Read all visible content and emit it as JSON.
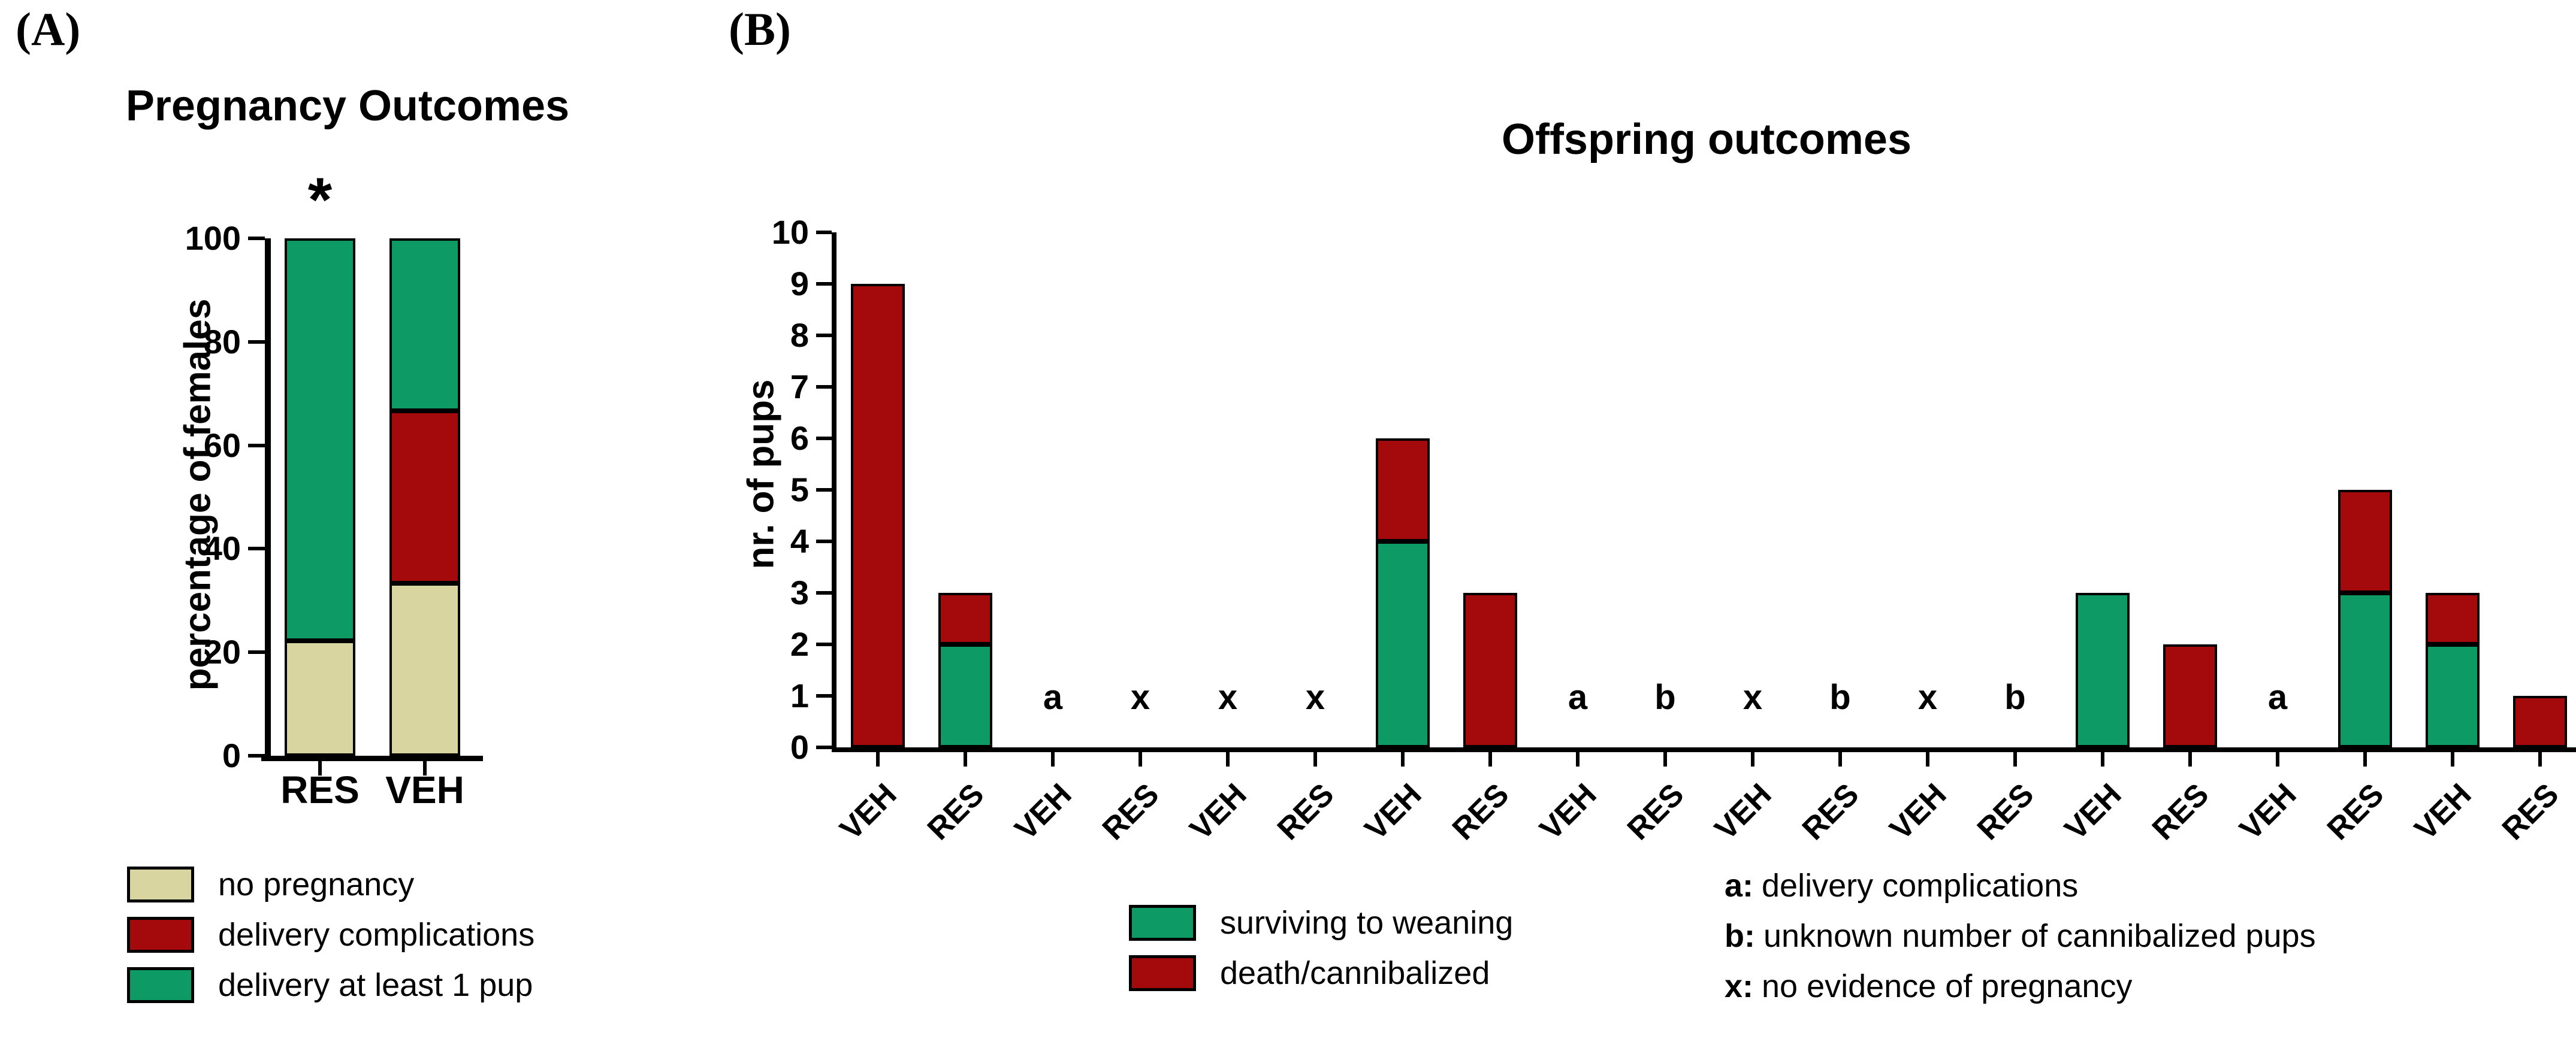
{
  "panels": {
    "a_tag": "(A)",
    "b_tag": "(B)",
    "star": "*"
  },
  "colors": {
    "green": "#0D9A64",
    "red": "#A40A0C",
    "tan": "#D8D5A0",
    "axis": "#000000",
    "background": "#FFFFFF"
  },
  "chart_data": [
    {
      "id": "pregnancy-outcomes",
      "type": "bar",
      "stacked": true,
      "title": "Pregnancy Outcomes",
      "ylabel": "percentage of females",
      "ylim": [
        0,
        100
      ],
      "yticks": [
        0,
        20,
        40,
        60,
        80,
        100
      ],
      "grid": false,
      "legend_position": "below",
      "categories": [
        "RES",
        "VEH"
      ],
      "series": [
        {
          "name": "no pregnancy",
          "color_key": "tan",
          "values": [
            22.2,
            33.3
          ]
        },
        {
          "name": "delivery complications",
          "color_key": "red",
          "values": [
            0,
            33.4
          ]
        },
        {
          "name": "delivery at least 1 pup",
          "color_key": "green",
          "values": [
            77.8,
            33.3
          ]
        }
      ],
      "annotations": [
        {
          "text": "*",
          "category": "RES",
          "position": "above-bar"
        }
      ]
    },
    {
      "id": "offspring-outcomes",
      "type": "bar",
      "stacked": true,
      "title": "Offspring outcomes",
      "ylabel": "nr. of pups",
      "ylim": [
        0,
        10
      ],
      "yticks": [
        0,
        1,
        2,
        3,
        4,
        5,
        6,
        7,
        8,
        9,
        10
      ],
      "grid": false,
      "legend_position": "below",
      "categories": [
        "VEH",
        "RES",
        "VEH",
        "RES",
        "VEH",
        "RES",
        "VEH",
        "RES",
        "VEH",
        "RES",
        "VEH",
        "RES",
        "VEH",
        "RES",
        "VEH",
        "RES",
        "VEH",
        "RES",
        "VEH",
        "RES"
      ],
      "series": [
        {
          "name": "surviving to weaning",
          "color_key": "green",
          "values": [
            0,
            2,
            0,
            0,
            0,
            0,
            4,
            0,
            0,
            0,
            0,
            0,
            0,
            0,
            3,
            0,
            0,
            3,
            2,
            0
          ]
        },
        {
          "name": "death/cannibalized",
          "color_key": "red",
          "values": [
            9,
            1,
            0,
            0,
            0,
            0,
            2,
            3,
            0,
            0,
            0,
            0,
            0,
            0,
            0,
            2,
            0,
            2,
            1,
            1
          ]
        }
      ],
      "bar_annotations": [
        "",
        "",
        "a",
        "x",
        "x",
        "x",
        "",
        "",
        "a",
        "b",
        "x",
        "b",
        "x",
        "b",
        "",
        "",
        "a",
        "",
        "",
        ""
      ],
      "notes": [
        {
          "key": "a:",
          "text": "delivery complications"
        },
        {
          "key": "b:",
          "text": "unknown number of cannibalized pups"
        },
        {
          "key": "x:",
          "text": "no evidence of pregnancy"
        }
      ]
    }
  ]
}
